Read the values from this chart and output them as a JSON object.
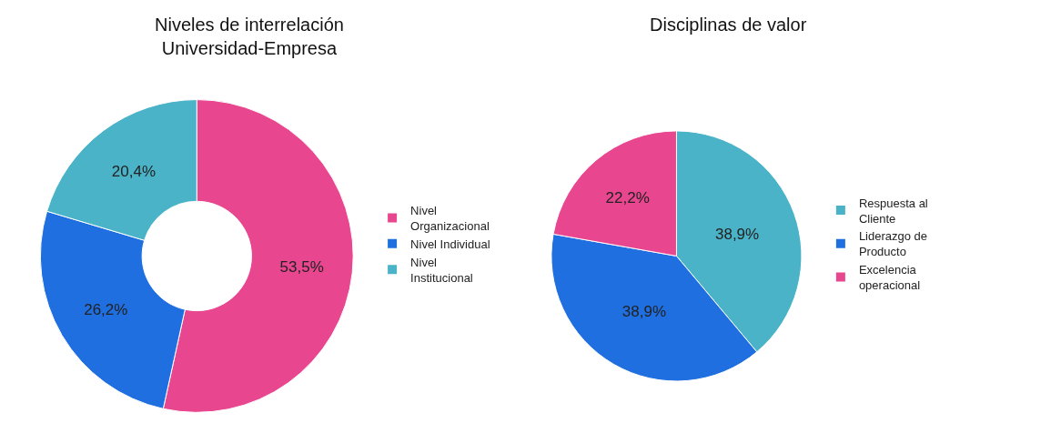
{
  "chart_data": [
    {
      "type": "donut",
      "title": "Niveles de interrelación\nUniversidad-Empresa",
      "categories": [
        "Nivel Organizacional",
        "Nivel Individual",
        "Nivel Institucional"
      ],
      "values": [
        53.5,
        26.2,
        20.4
      ],
      "value_labels": [
        "53,5%",
        "26,2%",
        "20,4%"
      ],
      "colors": [
        "#e8478f",
        "#1f6fe0",
        "#4ab3c8"
      ],
      "legend": "right"
    },
    {
      "type": "pie",
      "title": "Disciplinas de valor",
      "categories": [
        "Respuesta al Cliente",
        "Liderazgo de Producto",
        "Excelencia operacional"
      ],
      "values": [
        38.9,
        38.9,
        22.2
      ],
      "value_labels": [
        "38,9%",
        "38,9%",
        "22,2%"
      ],
      "colors": [
        "#4ab3c8",
        "#1f6fe0",
        "#e8478f"
      ],
      "legend": "right"
    }
  ]
}
